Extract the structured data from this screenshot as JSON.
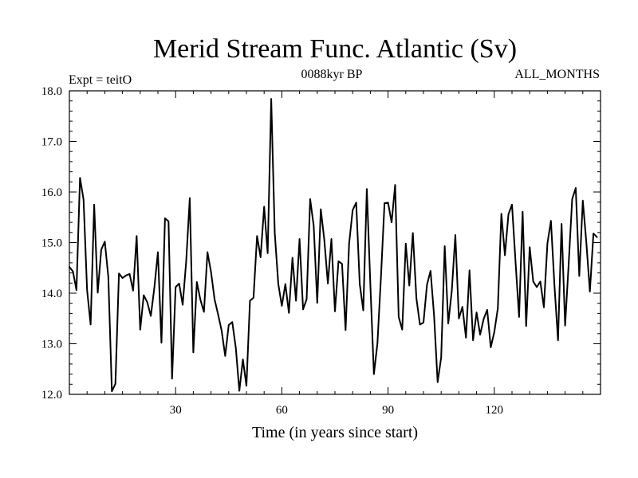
{
  "chart_data": {
    "type": "line",
    "title": "Merid Stream Func. Atlantic (Sv)",
    "subtitle": "0088kyr BP",
    "left_label": "Expt = teitO",
    "right_label": "ALL_MONTHS",
    "xlabel": "Time (in years since start)",
    "ylabel": "",
    "xlim": [
      0,
      150
    ],
    "ylim": [
      12.0,
      18.0
    ],
    "x_ticks": [
      30,
      60,
      90,
      120
    ],
    "x_tick_labels": [
      "30",
      "60",
      "90",
      "120"
    ],
    "y_ticks": [
      12.0,
      13.0,
      14.0,
      15.0,
      16.0,
      17.0,
      18.0
    ],
    "y_tick_labels": [
      "12.0",
      "13.0",
      "14.0",
      "15.0",
      "16.0",
      "17.0",
      "18.0"
    ],
    "grid": false,
    "legend": "none",
    "line_color": "#000000",
    "x_start": 0,
    "x_step": 1,
    "values": [
      14.52,
      14.43,
      14.06,
      16.28,
      15.85,
      14.06,
      13.38,
      15.75,
      14.01,
      14.86,
      15.02,
      14.32,
      12.06,
      12.21,
      14.39,
      14.3,
      14.35,
      14.38,
      14.05,
      15.13,
      13.28,
      13.96,
      13.82,
      13.55,
      14.11,
      14.81,
      13.02,
      15.48,
      15.42,
      12.31,
      14.12,
      14.19,
      13.77,
      14.64,
      15.88,
      12.83,
      14.22,
      13.87,
      13.63,
      14.81,
      14.42,
      13.88,
      13.58,
      13.26,
      12.76,
      13.37,
      13.43,
      12.92,
      12.07,
      12.69,
      12.17,
      13.85,
      13.91,
      15.13,
      14.71,
      15.71,
      14.79,
      17.84,
      15.19,
      14.18,
      13.75,
      14.18,
      13.61,
      14.7,
      13.85,
      15.07,
      13.68,
      13.88,
      15.86,
      15.33,
      13.81,
      15.66,
      15.05,
      14.19,
      15.07,
      13.64,
      14.63,
      14.58,
      13.27,
      14.98,
      15.64,
      15.79,
      14.18,
      13.66,
      16.06,
      14.17,
      12.4,
      13.01,
      14.33,
      15.78,
      15.79,
      15.4,
      16.14,
      13.53,
      13.28,
      14.98,
      14.15,
      15.19,
      13.9,
      13.38,
      13.42,
      14.17,
      14.44,
      13.55,
      12.24,
      12.73,
      14.93,
      13.4,
      14.05,
      15.15,
      13.5,
      13.73,
      13.12,
      14.45,
      13.07,
      13.62,
      13.18,
      13.49,
      13.67,
      12.93,
      13.23,
      13.7,
      15.57,
      14.75,
      15.56,
      15.75,
      14.62,
      13.53,
      15.61,
      13.35,
      14.91,
      14.23,
      14.12,
      14.23,
      13.72,
      14.98,
      15.43,
      14.14,
      13.07,
      15.37,
      13.36,
      14.57,
      15.86,
      16.08,
      14.34,
      15.83,
      15.0,
      14.03,
      15.18,
      15.11
    ]
  }
}
